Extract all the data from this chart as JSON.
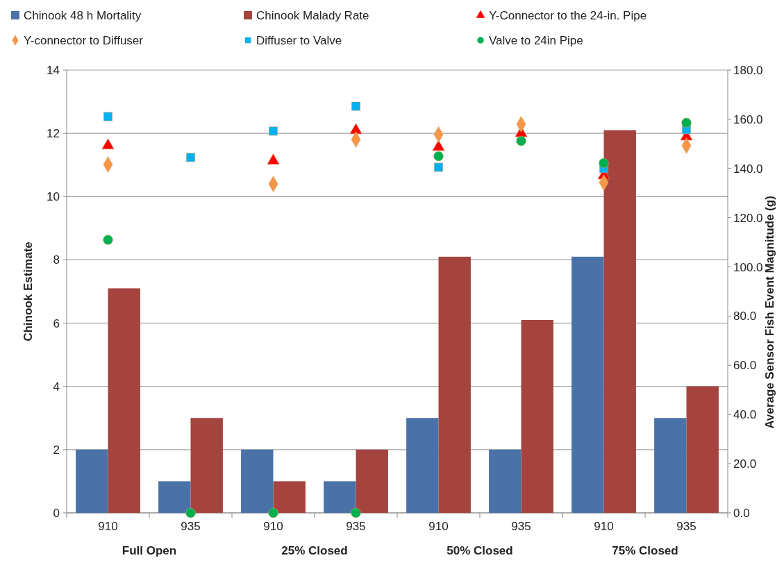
{
  "chart_data": {
    "type": "bar",
    "categories": [
      "910",
      "935",
      "910",
      "935",
      "910",
      "935",
      "910",
      "935"
    ],
    "ylabel": "Chinook Estimate",
    "y2label": "Average Sensor Fish Event Magnitude (g)",
    "ylim": [
      0,
      14
    ],
    "yticks": [
      0,
      2,
      4,
      6,
      8,
      10,
      12,
      14
    ],
    "y2lim": [
      0,
      180
    ],
    "y2ticks": [
      {
        "value": 0,
        "label": "0.0"
      },
      {
        "value": 20,
        "label": "20.0"
      },
      {
        "value": 40,
        "label": "40.0"
      },
      {
        "value": 60,
        "label": "60.0"
      },
      {
        "value": 80,
        "label": "80.0"
      },
      {
        "value": 100,
        "label": "100.0"
      },
      {
        "value": 120,
        "label": "120.0"
      },
      {
        "value": 140,
        "label": "140.0"
      },
      {
        "value": 160,
        "label": "160.0"
      },
      {
        "value": 180,
        "label": "180.0"
      }
    ],
    "grid": "y",
    "legend": "top",
    "annotations": [
      "Full Open",
      "25% Closed",
      "50% Closed",
      "75% Closed"
    ],
    "series": [
      {
        "name": "Chinook 48 h Mortality",
        "color": "#4a72a8",
        "values": [
          2,
          1,
          2,
          1,
          3,
          2,
          8.1,
          3
        ]
      },
      {
        "name": "Chinook Malady Rate",
        "color": "#a5443f",
        "values": [
          7.1,
          3,
          1,
          2,
          8.1,
          6.1,
          12.1,
          4
        ]
      },
      {
        "name": "Y-Connector to the 24-in. Pipe",
        "type": "scatter",
        "axis": "y2",
        "marker": "triangle",
        "color": "#ff0000",
        "values": [
          149.3,
          null,
          143.1,
          155.5,
          148.7,
          154.3,
          137.1,
          152.9
        ]
      },
      {
        "name": "Y-connector to Diffuser",
        "type": "scatter",
        "axis": "y2",
        "marker": "diamond",
        "color": "#f79646",
        "values": [
          141.6,
          null,
          133.7,
          151.8,
          153.8,
          158.0,
          134.3,
          149.3
        ]
      },
      {
        "name": "Diffuser to Valve",
        "type": "scatter",
        "axis": "y2",
        "marker": "square",
        "color": "#00b0f0",
        "values": [
          161.1,
          144.5,
          155.2,
          165.3,
          140.5,
          null,
          140.0,
          155.8
        ]
      },
      {
        "name": "Valve to 24in Pipe",
        "type": "scatter",
        "axis": "y2",
        "marker": "circle",
        "color": "#00b050",
        "values": [
          111,
          0,
          0,
          0,
          145.0,
          151.2,
          142.2,
          158.6
        ]
      }
    ]
  }
}
